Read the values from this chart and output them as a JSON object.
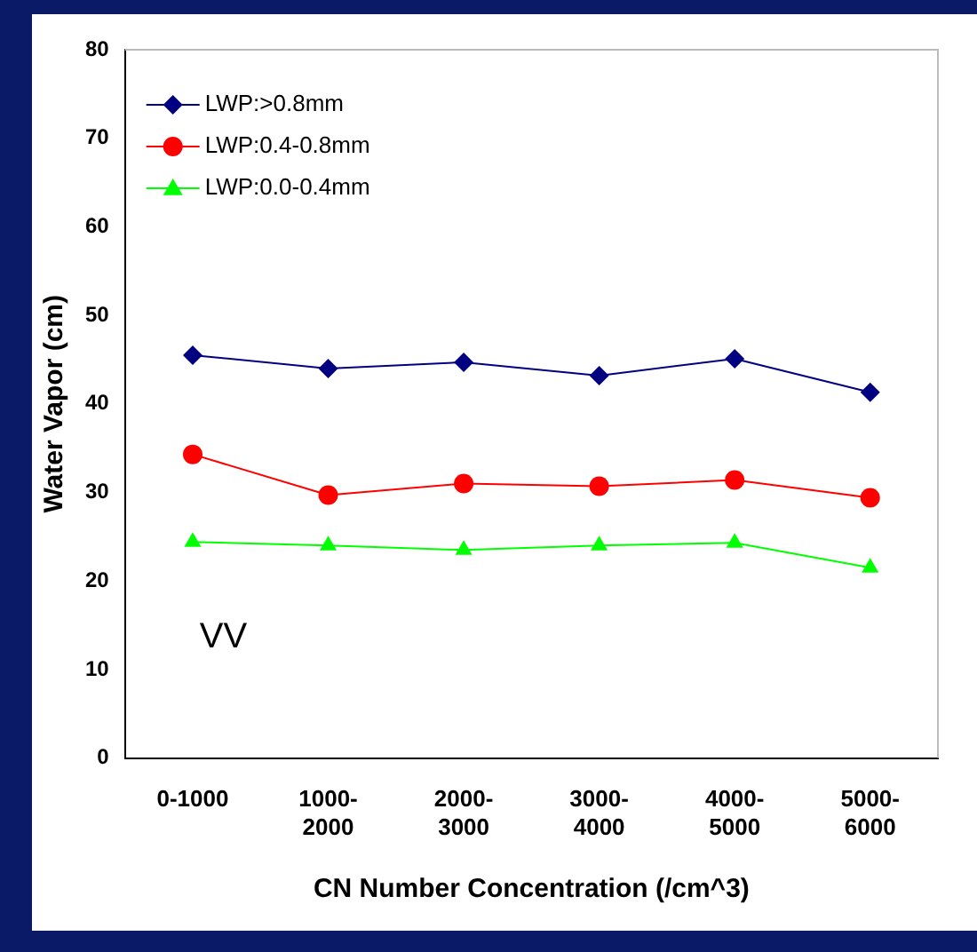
{
  "chart_data": {
    "type": "line",
    "xlabel": "CN Number Concentration (/cm^3)",
    "ylabel": "Water Vapor (cm)",
    "categories": [
      "0-1000",
      "1000-2000",
      "2000-3000",
      "3000-4000",
      "4000-5000",
      "5000-6000"
    ],
    "series": [
      {
        "name": "LWP:>0.8mm",
        "color": "#000080",
        "marker": "diamond",
        "values": [
          45.5,
          44,
          44.7,
          43.2,
          45.1,
          41.3
        ]
      },
      {
        "name": "LWP:0.4-0.8mm",
        "color": "#ff0000",
        "marker": "circle",
        "values": [
          34.3,
          29.7,
          31,
          30.7,
          31.4,
          29.4
        ]
      },
      {
        "name": "LWP:0.0-0.4mm",
        "color": "#00ff00",
        "marker": "triangle",
        "values": [
          24.4,
          24,
          23.5,
          24,
          24.3,
          21.5
        ]
      }
    ],
    "ylim": [
      0,
      80
    ],
    "yticks": [
      0,
      10,
      20,
      30,
      40,
      50,
      60,
      70,
      80
    ],
    "grid": false,
    "legend": "top left",
    "annotations": [
      "VV"
    ]
  }
}
